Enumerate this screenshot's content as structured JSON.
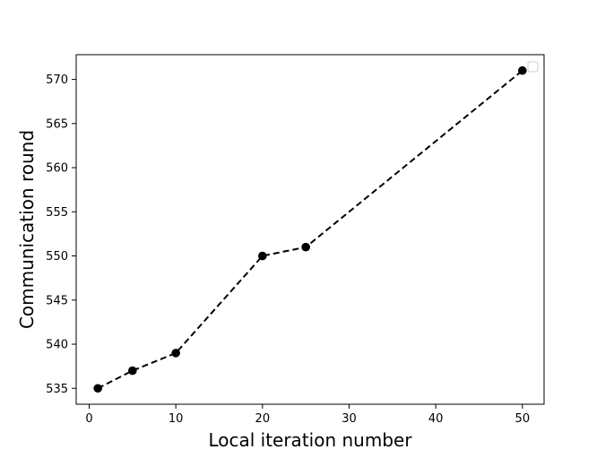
{
  "chart_data": {
    "type": "line",
    "title": "",
    "xlabel": "Local iteration number",
    "ylabel": "Communication round",
    "xlim": [
      -1.5,
      52.5
    ],
    "ylim": [
      533.2,
      572.8
    ],
    "xticks": [
      0,
      10,
      20,
      30,
      40,
      50
    ],
    "yticks": [
      535,
      540,
      545,
      550,
      555,
      560,
      565,
      570
    ],
    "grid": false,
    "legend_position": "top-right",
    "legend_empty": true,
    "series": [
      {
        "x": [
          1,
          5,
          10,
          20,
          25,
          50
        ],
        "y": [
          535,
          537,
          539,
          550,
          551,
          571
        ],
        "color": "#000000",
        "line_style": "dashed",
        "marker": "circle"
      }
    ]
  }
}
